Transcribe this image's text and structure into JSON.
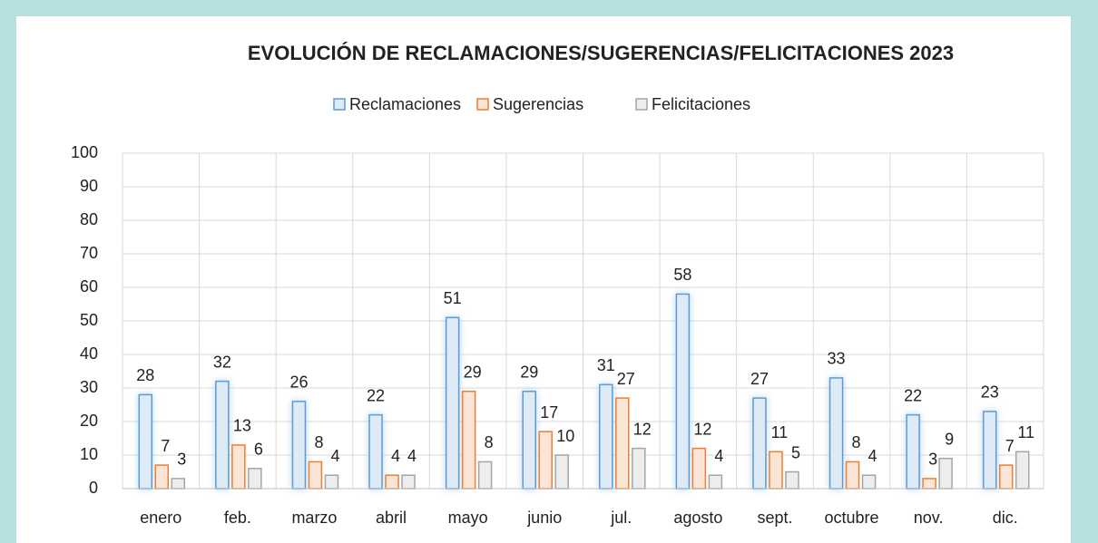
{
  "chart_data": {
    "type": "bar",
    "title": "EVOLUCIÓN DE RECLAMACIONES/SUGERENCIAS/FELICITACIONES 2023",
    "categories": [
      "enero",
      "feb.",
      "marzo",
      "abril",
      "mayo",
      "junio",
      "jul.",
      "agosto",
      "sept.",
      "octubre",
      "nov.",
      "dic."
    ],
    "series": [
      {
        "name": "Reclamaciones",
        "color": "#5b9bd5",
        "values": [
          28,
          32,
          26,
          22,
          51,
          29,
          31,
          58,
          27,
          33,
          22,
          23
        ]
      },
      {
        "name": "Sugerencias",
        "color": "#ed7d31",
        "values": [
          7,
          13,
          8,
          4,
          29,
          17,
          27,
          12,
          11,
          8,
          3,
          7
        ]
      },
      {
        "name": "Felicitaciones",
        "color": "#a5a5a5",
        "values": [
          3,
          6,
          4,
          4,
          8,
          10,
          12,
          4,
          5,
          4,
          9,
          11
        ]
      }
    ],
    "ylim": [
      0,
      100
    ],
    "yticks": [
      0,
      10,
      20,
      30,
      40,
      50,
      60,
      70,
      80,
      90,
      100
    ],
    "grid": true,
    "legend": "top"
  }
}
